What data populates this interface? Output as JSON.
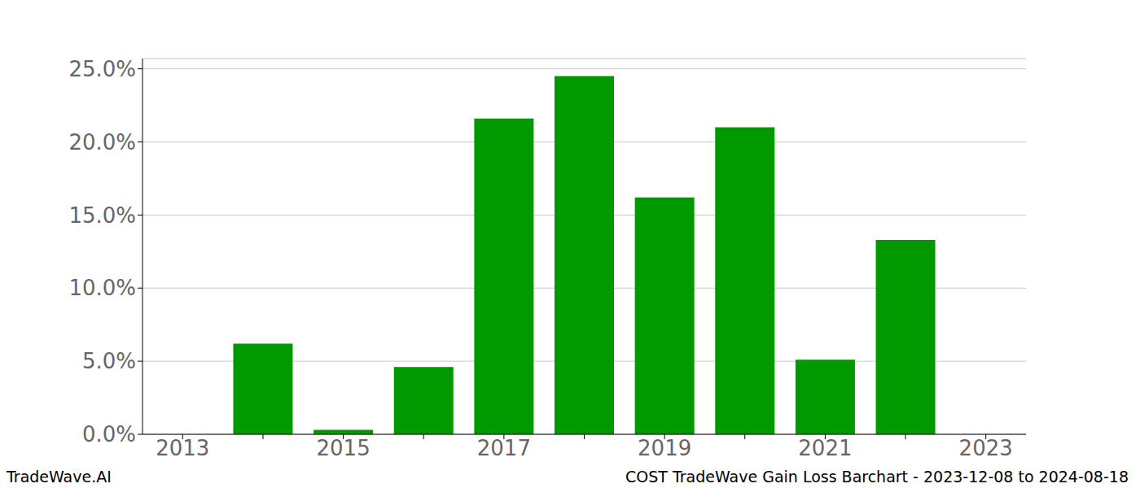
{
  "chart_data": {
    "type": "bar",
    "title": "COST TradeWave Gain Loss Barchart - 2023-12-08 to 2024-08-18",
    "annotations": [
      "TradeWave.AI"
    ],
    "categories": [
      "2013",
      null,
      "2015",
      null,
      "2017",
      null,
      "2019",
      null,
      "2021",
      null,
      "2023"
    ],
    "values": [
      0,
      6.2,
      0.3,
      4.6,
      21.6,
      24.5,
      16.2,
      21.0,
      5.1,
      13.3,
      0
    ],
    "color": "#009900",
    "ylim": [
      0,
      25.7
    ],
    "yticks": [
      {
        "value": 0,
        "label": "0.0%"
      },
      {
        "value": 5,
        "label": "5.0%"
      },
      {
        "value": 10,
        "label": "10.0%"
      },
      {
        "value": 15,
        "label": "15.0%"
      },
      {
        "value": 20,
        "label": "20.0%"
      },
      {
        "value": 25,
        "label": "25.0%"
      }
    ],
    "grid": true
  }
}
